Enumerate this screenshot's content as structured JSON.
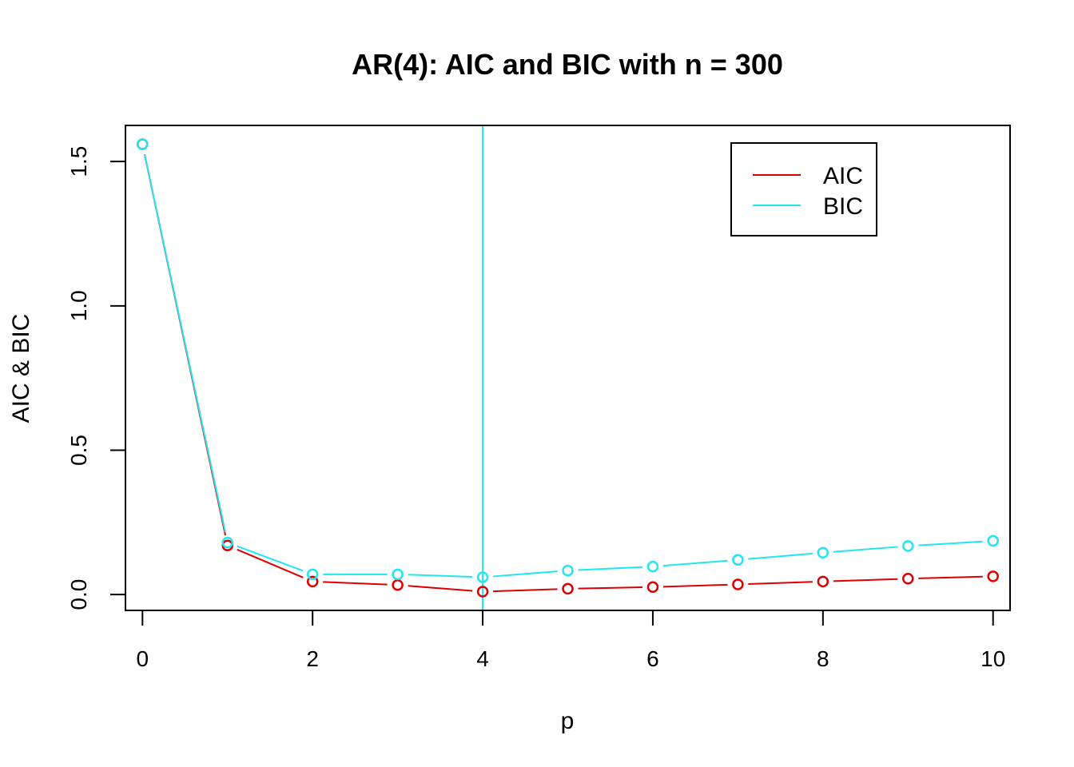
{
  "chart_data": {
    "type": "line",
    "title": "AR(4): AIC and BIC with n = 300",
    "xlabel": "p",
    "ylabel": "AIC & BIC",
    "x": [
      0,
      1,
      2,
      3,
      4,
      5,
      6,
      7,
      8,
      9,
      10
    ],
    "xlim": [
      -0.2,
      10.2
    ],
    "ylim": [
      -0.055,
      1.625
    ],
    "x_ticks": [
      "0",
      "2",
      "4",
      "6",
      "8",
      "10"
    ],
    "y_ticks": [
      "0.0",
      "0.5",
      "1.0",
      "1.5"
    ],
    "series": [
      {
        "name": "AIC",
        "color": "#dd0000",
        "values": [
          1.56,
          0.17,
          0.045,
          0.033,
          0.01,
          0.02,
          0.026,
          0.035,
          0.045,
          0.055,
          0.063
        ]
      },
      {
        "name": "BIC",
        "color": "#22e5ef",
        "values": [
          1.56,
          0.18,
          0.07,
          0.07,
          0.06,
          0.083,
          0.097,
          0.12,
          0.145,
          0.168,
          0.186
        ]
      }
    ],
    "vline": {
      "x": 4,
      "color": "#22e5ef"
    },
    "legend": {
      "position": "top-right",
      "entries": [
        "AIC",
        "BIC"
      ]
    },
    "grid": false
  }
}
